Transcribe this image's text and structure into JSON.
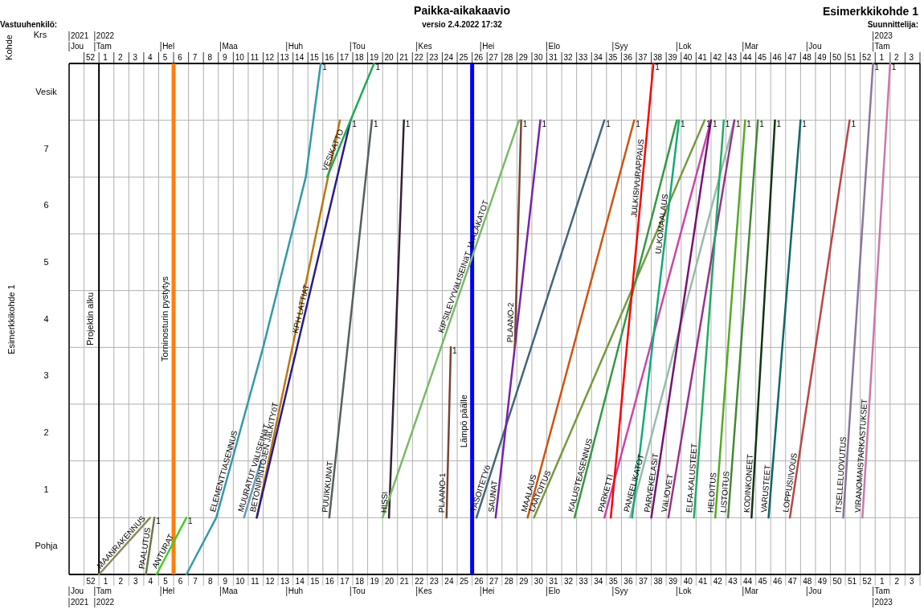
{
  "chart_data": {
    "type": "line",
    "title": "Paikka-aikakaavio",
    "subtitle": "versio 2.4.2022 17:32",
    "ylabel": "Esimerkkikohde 1",
    "legend": false,
    "grid": true,
    "marker": "none",
    "line_style": "solid",
    "xlim": [
      "2021-12-20",
      "2023-01-23"
    ],
    "x2lim": [
      "2021-12-20",
      "2023-01-23"
    ],
    "ylim": [
      0,
      9
    ],
    "xticks": [
      {
        "value": "2021-12-30",
        "label": "52"
      },
      {
        "value": "2022-01-06",
        "label": "1"
      },
      {
        "value": "2022-01-13",
        "label": "2"
      },
      {
        "value": "2022-01-20",
        "label": "3"
      },
      {
        "value": "2022-01-27",
        "label": "4"
      },
      {
        "value": "2022-02-03",
        "label": "5"
      },
      {
        "value": "2022-02-10",
        "label": "6"
      },
      {
        "value": "2022-02-17",
        "label": "7"
      },
      {
        "value": "2022-02-24",
        "label": "8"
      },
      {
        "value": "2022-03-03",
        "label": "9"
      },
      {
        "value": "2022-03-10",
        "label": "10"
      },
      {
        "value": "2022-03-17",
        "label": "11"
      },
      {
        "value": "2022-03-24",
        "label": "12"
      },
      {
        "value": "2022-03-31",
        "label": "13"
      },
      {
        "value": "2022-04-07",
        "label": "14"
      },
      {
        "value": "2022-04-14",
        "label": "15"
      },
      {
        "value": "2022-04-21",
        "label": "16"
      },
      {
        "value": "2022-04-28",
        "label": "17"
      },
      {
        "value": "2022-05-05",
        "label": "18"
      },
      {
        "value": "2022-05-12",
        "label": "19"
      },
      {
        "value": "2022-05-19",
        "label": "20"
      },
      {
        "value": "2022-05-26",
        "label": "21"
      },
      {
        "value": "2022-06-02",
        "label": "22"
      },
      {
        "value": "2022-06-09",
        "label": "23"
      },
      {
        "value": "2022-06-16",
        "label": "24"
      },
      {
        "value": "2022-06-23",
        "label": "25"
      },
      {
        "value": "2022-06-30",
        "label": "26"
      },
      {
        "value": "2022-07-07",
        "label": "27"
      },
      {
        "value": "2022-07-14",
        "label": "28"
      },
      {
        "value": "2022-07-21",
        "label": "29"
      },
      {
        "value": "2022-07-28",
        "label": "30"
      },
      {
        "value": "2022-08-04",
        "label": "31"
      },
      {
        "value": "2022-08-11",
        "label": "32"
      },
      {
        "value": "2022-08-18",
        "label": "33"
      },
      {
        "value": "2022-08-25",
        "label": "34"
      },
      {
        "value": "2022-09-01",
        "label": "35"
      },
      {
        "value": "2022-09-08",
        "label": "36"
      },
      {
        "value": "2022-09-15",
        "label": "37"
      },
      {
        "value": "2022-09-22",
        "label": "38"
      },
      {
        "value": "2022-09-29",
        "label": "39"
      },
      {
        "value": "2022-10-06",
        "label": "40"
      },
      {
        "value": "2022-10-13",
        "label": "41"
      },
      {
        "value": "2022-10-20",
        "label": "42"
      },
      {
        "value": "2022-10-27",
        "label": "43"
      },
      {
        "value": "2022-11-03",
        "label": "44"
      },
      {
        "value": "2022-11-10",
        "label": "45"
      },
      {
        "value": "2022-11-17",
        "label": "46"
      },
      {
        "value": "2022-11-24",
        "label": "47"
      },
      {
        "value": "2022-12-01",
        "label": "48"
      },
      {
        "value": "2022-12-08",
        "label": "49"
      },
      {
        "value": "2022-12-15",
        "label": "50"
      },
      {
        "value": "2022-12-22",
        "label": "51"
      },
      {
        "value": "2022-12-29",
        "label": "52"
      },
      {
        "value": "2023-01-05",
        "label": "1"
      },
      {
        "value": "2023-01-12",
        "label": "2"
      },
      {
        "value": "2023-01-19",
        "label": "3"
      },
      {
        "value": "2021-12-27",
        "label": null
      },
      {
        "value": "2022-01-03",
        "label": null
      },
      {
        "value": "2022-01-10",
        "label": null
      },
      {
        "value": "2022-01-17",
        "label": null
      },
      {
        "value": "2022-01-24",
        "label": null
      },
      {
        "value": "2022-01-31",
        "label": null
      },
      {
        "value": "2022-02-07",
        "label": null
      },
      {
        "value": "2022-02-14",
        "label": null
      },
      {
        "value": "2022-02-21",
        "label": null
      },
      {
        "value": "2022-02-28",
        "label": null
      },
      {
        "value": "2022-03-07",
        "label": null
      },
      {
        "value": "2022-03-14",
        "label": null
      },
      {
        "value": "2022-03-21",
        "label": null
      },
      {
        "value": "2022-03-28",
        "label": null
      },
      {
        "value": "2022-04-04",
        "label": null
      },
      {
        "value": "2022-04-11",
        "label": null
      },
      {
        "value": "2022-04-18",
        "label": null
      },
      {
        "value": "2022-04-25",
        "label": null
      },
      {
        "value": "2022-05-02",
        "label": null
      },
      {
        "value": "2022-05-09",
        "label": null
      },
      {
        "value": "2022-05-16",
        "label": null
      },
      {
        "value": "2022-05-23",
        "label": null
      },
      {
        "value": "2022-05-30",
        "label": null
      },
      {
        "value": "2022-06-06",
        "label": null
      },
      {
        "value": "2022-06-13",
        "label": null
      },
      {
        "value": "2022-06-20",
        "label": null
      },
      {
        "value": "2022-06-27",
        "label": null
      },
      {
        "value": "2022-07-04",
        "label": null
      },
      {
        "value": "2022-07-11",
        "label": null
      },
      {
        "value": "2022-07-18",
        "label": null
      },
      {
        "value": "2022-07-25",
        "label": null
      },
      {
        "value": "2022-08-01",
        "label": null
      },
      {
        "value": "2022-08-08",
        "label": null
      },
      {
        "value": "2022-08-15",
        "label": null
      },
      {
        "value": "2022-08-22",
        "label": null
      },
      {
        "value": "2022-08-29",
        "label": null
      },
      {
        "value": "2022-09-05",
        "label": null
      },
      {
        "value": "2022-09-12",
        "label": null
      },
      {
        "value": "2022-09-19",
        "label": null
      },
      {
        "value": "2022-09-26",
        "label": null
      },
      {
        "value": "2022-10-03",
        "label": null
      },
      {
        "value": "2022-10-10",
        "label": null
      },
      {
        "value": "2022-10-17",
        "label": null
      },
      {
        "value": "2022-10-24",
        "label": null
      },
      {
        "value": "2022-10-31",
        "label": null
      },
      {
        "value": "2022-11-07",
        "label": null
      },
      {
        "value": "2022-11-14",
        "label": null
      },
      {
        "value": "2022-11-21",
        "label": null
      },
      {
        "value": "2022-11-28",
        "label": null
      },
      {
        "value": "2022-12-05",
        "label": null
      },
      {
        "value": "2022-12-12",
        "label": null
      },
      {
        "value": "2022-12-19",
        "label": null
      },
      {
        "value": "2022-12-26",
        "label": null
      },
      {
        "value": "2023-01-02",
        "label": null
      },
      {
        "value": "2023-01-09",
        "label": null
      },
      {
        "value": "2023-01-16",
        "label": null
      },
      {
        "value": "2023-01-23",
        "label": null
      }
    ],
    "x2ticks": [
      {
        "value": "2021-12-30",
        "label": "52"
      },
      {
        "value": "2022-01-06",
        "label": "1"
      },
      {
        "value": "2022-01-13",
        "label": "2"
      },
      {
        "value": "2022-01-20",
        "label": "3"
      },
      {
        "value": "2022-01-27",
        "label": "4"
      },
      {
        "value": "2022-02-03",
        "label": "5"
      },
      {
        "value": "2022-02-10",
        "label": "6"
      },
      {
        "value": "2022-02-17",
        "label": "7"
      },
      {
        "value": "2022-02-24",
        "label": "8"
      },
      {
        "value": "2022-03-03",
        "label": "9"
      },
      {
        "value": "2022-03-10",
        "label": "10"
      },
      {
        "value": "2022-03-17",
        "label": "11"
      },
      {
        "value": "2022-03-24",
        "label": "12"
      },
      {
        "value": "2022-03-31",
        "label": "13"
      },
      {
        "value": "2022-04-07",
        "label": "14"
      },
      {
        "value": "2022-04-14",
        "label": "15"
      },
      {
        "value": "2022-04-21",
        "label": "16"
      },
      {
        "value": "2022-04-28",
        "label": "17"
      },
      {
        "value": "2022-05-05",
        "label": "18"
      },
      {
        "value": "2022-05-12",
        "label": "19"
      },
      {
        "value": "2022-05-19",
        "label": "20"
      },
      {
        "value": "2022-05-26",
        "label": "21"
      },
      {
        "value": "2022-06-02",
        "label": "22"
      },
      {
        "value": "2022-06-09",
        "label": "23"
      },
      {
        "value": "2022-06-16",
        "label": "24"
      },
      {
        "value": "2022-06-23",
        "label": "25"
      },
      {
        "value": "2022-06-30",
        "label": "26"
      },
      {
        "value": "2022-07-07",
        "label": "27"
      },
      {
        "value": "2022-07-14",
        "label": "28"
      },
      {
        "value": "2022-07-21",
        "label": "29"
      },
      {
        "value": "2022-07-28",
        "label": "30"
      },
      {
        "value": "2022-08-04",
        "label": "31"
      },
      {
        "value": "2022-08-11",
        "label": "32"
      },
      {
        "value": "2022-08-18",
        "label": "33"
      },
      {
        "value": "2022-08-25",
        "label": "34"
      },
      {
        "value": "2022-09-01",
        "label": "35"
      },
      {
        "value": "2022-09-08",
        "label": "36"
      },
      {
        "value": "2022-09-15",
        "label": "37"
      },
      {
        "value": "2022-09-22",
        "label": "38"
      },
      {
        "value": "2022-09-29",
        "label": "39"
      },
      {
        "value": "2022-10-06",
        "label": "40"
      },
      {
        "value": "2022-10-13",
        "label": "41"
      },
      {
        "value": "2022-10-20",
        "label": "42"
      },
      {
        "value": "2022-10-27",
        "label": "43"
      },
      {
        "value": "2022-11-03",
        "label": "44"
      },
      {
        "value": "2022-11-10",
        "label": "45"
      },
      {
        "value": "2022-11-17",
        "label": "46"
      },
      {
        "value": "2022-11-24",
        "label": "47"
      },
      {
        "value": "2022-12-01",
        "label": "48"
      },
      {
        "value": "2022-12-08",
        "label": "49"
      },
      {
        "value": "2022-12-15",
        "label": "50"
      },
      {
        "value": "2022-12-22",
        "label": "51"
      },
      {
        "value": "2022-12-29",
        "label": "52"
      },
      {
        "value": "2023-01-05",
        "label": "1"
      },
      {
        "value": "2023-01-12",
        "label": "2"
      },
      {
        "value": "2023-01-19",
        "label": "3"
      },
      {
        "value": "2021-12-27",
        "label": null
      },
      {
        "value": "2022-01-03",
        "label": null
      },
      {
        "value": "2022-01-10",
        "label": null
      },
      {
        "value": "2022-01-17",
        "label": null
      },
      {
        "value": "2022-01-24",
        "label": null
      },
      {
        "value": "2022-01-31",
        "label": null
      },
      {
        "value": "2022-02-07",
        "label": null
      },
      {
        "value": "2022-02-14",
        "label": null
      },
      {
        "value": "2022-02-21",
        "label": null
      },
      {
        "value": "2022-02-28",
        "label": null
      },
      {
        "value": "2022-03-07",
        "label": null
      },
      {
        "value": "2022-03-14",
        "label": null
      },
      {
        "value": "2022-03-21",
        "label": null
      },
      {
        "value": "2022-03-28",
        "label": null
      },
      {
        "value": "2022-04-04",
        "label": null
      },
      {
        "value": "2022-04-11",
        "label": null
      },
      {
        "value": "2022-04-18",
        "label": null
      },
      {
        "value": "2022-04-25",
        "label": null
      },
      {
        "value": "2022-05-02",
        "label": null
      },
      {
        "value": "2022-05-09",
        "label": null
      },
      {
        "value": "2022-05-16",
        "label": null
      },
      {
        "value": "2022-05-23",
        "label": null
      },
      {
        "value": "2022-05-30",
        "label": null
      },
      {
        "value": "2022-06-06",
        "label": null
      },
      {
        "value": "2022-06-13",
        "label": null
      },
      {
        "value": "2022-06-20",
        "label": null
      },
      {
        "value": "2022-06-27",
        "label": null
      },
      {
        "value": "2022-07-04",
        "label": null
      },
      {
        "value": "2022-07-11",
        "label": null
      },
      {
        "value": "2022-07-18",
        "label": null
      },
      {
        "value": "2022-07-25",
        "label": null
      },
      {
        "value": "2022-08-01",
        "label": null
      },
      {
        "value": "2022-08-08",
        "label": null
      },
      {
        "value": "2022-08-15",
        "label": null
      },
      {
        "value": "2022-08-22",
        "label": null
      },
      {
        "value": "2022-08-29",
        "label": null
      },
      {
        "value": "2022-09-05",
        "label": null
      },
      {
        "value": "2022-09-12",
        "label": null
      },
      {
        "value": "2022-09-19",
        "label": null
      },
      {
        "value": "2022-09-26",
        "label": null
      },
      {
        "value": "2022-10-03",
        "label": null
      },
      {
        "value": "2022-10-10",
        "label": null
      },
      {
        "value": "2022-10-17",
        "label": null
      },
      {
        "value": "2022-10-24",
        "label": null
      },
      {
        "value": "2022-10-31",
        "label": null
      },
      {
        "value": "2022-11-07",
        "label": null
      },
      {
        "value": "2022-11-14",
        "label": null
      },
      {
        "value": "2022-11-21",
        "label": null
      },
      {
        "value": "2022-11-28",
        "label": null
      },
      {
        "value": "2022-12-05",
        "label": null
      },
      {
        "value": "2022-12-12",
        "label": null
      },
      {
        "value": "2022-12-19",
        "label": null
      },
      {
        "value": "2022-12-26",
        "label": null
      },
      {
        "value": "2023-01-02",
        "label": null
      },
      {
        "value": "2023-01-09",
        "label": null
      },
      {
        "value": "2023-01-16",
        "label": null
      },
      {
        "value": "2023-01-23",
        "label": null
      }
    ],
    "yticks": [
      {
        "value": 0.5,
        "label": "Pohja"
      },
      {
        "value": 1.5,
        "label": "1"
      },
      {
        "value": 2.5,
        "label": "2"
      },
      {
        "value": 3.5,
        "label": "3"
      },
      {
        "value": 4.5,
        "label": "4"
      },
      {
        "value": 5.5,
        "label": "5"
      },
      {
        "value": 6.5,
        "label": "6"
      },
      {
        "value": 7.5,
        "label": "7"
      },
      {
        "value": 8.5,
        "label": "Vesik"
      },
      {
        "value": 0,
        "label": null
      },
      {
        "value": 1,
        "label": null
      },
      {
        "value": 2,
        "label": null
      },
      {
        "value": 3,
        "label": null
      },
      {
        "value": 4,
        "label": null
      },
      {
        "value": 5,
        "label": null
      },
      {
        "value": 6,
        "label": null
      },
      {
        "value": 7,
        "label": null
      },
      {
        "value": 8,
        "label": null
      },
      {
        "value": 9,
        "label": null
      }
    ],
    "ref_lines": [
      {
        "axis": "x",
        "value": "2022-01-03",
        "label": "Projektin alku",
        "color": "#000000"
      },
      {
        "axis": "x",
        "value": "2022-02-07",
        "label": "Torninosturin pystytys",
        "color": "#ff7f0e"
      },
      {
        "axis": "x",
        "value": "2022-06-27",
        "label": "Lämpö päälle",
        "color": "#0000ff"
      }
    ],
    "series": [
      {
        "name": "MAANRAKENNUS",
        "color": "#8b8b5c",
        "x": [
          "2022-01-03",
          "2022-01-27"
        ],
        "values": [
          0,
          1
        ]
      },
      {
        "name": "PAALUTUS",
        "color": "#6b7a45",
        "x": [
          "2022-01-25",
          "2022-01-29"
        ],
        "values": [
          0,
          1
        ]
      },
      {
        "name": "ANTURAT",
        "color": "#44cc22",
        "x": [
          "2022-01-30",
          "2022-02-13"
        ],
        "values": [
          0,
          1
        ]
      },
      {
        "name": "ELEMENTTIASENNUS",
        "color": "#3399aa",
        "x": [
          "2022-02-13",
          "2022-02-27",
          "2022-03-21",
          "2022-04-10",
          "2022-04-17"
        ],
        "values": [
          0,
          1,
          4,
          7,
          9
        ]
      },
      {
        "name": "MUURATUT VäLISEINäT",
        "color": "#6699bb",
        "x": [
          "2022-03-12",
          "2022-03-20"
        ],
        "values": [
          1,
          2
        ]
      },
      {
        "name": "BETONIPINTOJEN JäLKITYöT",
        "color": "#bb7711",
        "x": [
          "2022-03-18",
          "2022-04-26"
        ],
        "values": [
          1,
          8
        ]
      },
      {
        "name": "KPH LATTIAT",
        "color": "#2a1a88",
        "x": [
          "2022-03-18",
          "2022-05-01"
        ],
        "values": [
          1,
          8
        ]
      },
      {
        "name": "VESIKATTO",
        "color": "#22aa55",
        "x": [
          "2022-04-20",
          "2022-05-12"
        ],
        "values": [
          7,
          9
        ]
      },
      {
        "name": "PUUIKKUNAT",
        "color": "#555f60",
        "x": [
          "2022-04-21",
          "2022-05-11"
        ],
        "values": [
          1,
          8
        ]
      },
      {
        "name": "HISSI",
        "color": "#332233",
        "x": [
          "2022-05-19",
          "2022-05-26"
        ],
        "values": [
          1,
          8
        ]
      },
      {
        "name": "KIPSILEVYVäLISEINäT JA ALAKATOT",
        "color": "#77bb66",
        "x": [
          "2022-05-16",
          "2022-07-19"
        ],
        "values": [
          1,
          8
        ]
      },
      {
        "name": "PLAANO-1",
        "color": "#774433",
        "x": [
          "2022-06-15",
          "2022-06-17"
        ],
        "values": [
          1,
          4
        ]
      },
      {
        "name": "TASOITETYö",
        "color": "#446677",
        "x": [
          "2022-06-29",
          "2022-08-28"
        ],
        "values": [
          1,
          8
        ]
      },
      {
        "name": "SAUNAT",
        "color": "#7722aa",
        "x": [
          "2022-07-08",
          "2022-07-29"
        ],
        "values": [
          1,
          8
        ]
      },
      {
        "name": "PLAANO-2",
        "color": "#774433",
        "x": [
          "2022-07-17",
          "2022-07-20"
        ],
        "values": [
          4,
          8
        ]
      },
      {
        "name": "MAALAUS",
        "color": "#cc5511",
        "x": [
          "2022-07-23",
          "2022-09-11"
        ],
        "values": [
          1,
          8
        ]
      },
      {
        "name": "LAATOITUS",
        "color": "#77993f",
        "x": [
          "2022-07-26",
          "2022-10-14"
        ],
        "values": [
          1,
          8
        ]
      },
      {
        "name": "KALUSTEASENNUS",
        "color": "#339944",
        "x": [
          "2022-08-14",
          "2022-10-01"
        ],
        "values": [
          1,
          8
        ]
      },
      {
        "name": "PARKETTI",
        "color": "#cc44aa",
        "x": [
          "2022-08-28",
          "2022-10-17"
        ],
        "values": [
          1,
          8
        ]
      },
      {
        "name": "JULKISIVURAPPAUS",
        "color": "#ff0000",
        "x": [
          "2022-08-31",
          "2022-09-20"
        ],
        "values": [
          1,
          9
        ]
      },
      {
        "name": "PANEELIKATOT",
        "color": "#99bbaa",
        "x": [
          "2022-09-09",
          "2022-10-28"
        ],
        "values": [
          1,
          8
        ]
      },
      {
        "name": "ULKOMAALAUS",
        "color": "#11aa77",
        "x": [
          "2022-09-10",
          "2022-10-02"
        ],
        "values": [
          1,
          8
        ]
      },
      {
        "name": "PARVEKELASIT",
        "color": "#771177",
        "x": [
          "2022-09-19",
          "2022-10-17"
        ],
        "values": [
          1,
          8
        ]
      },
      {
        "name": "VäLIOVET",
        "color": "#993388",
        "x": [
          "2022-09-27",
          "2022-10-28"
        ],
        "values": [
          1,
          8
        ]
      },
      {
        "name": "ELFA-KALUSTEET",
        "color": "#22aa66",
        "x": [
          "2022-10-09",
          "2022-10-23"
        ],
        "values": [
          1,
          8
        ]
      },
      {
        "name": "HELOITUS",
        "color": "#55aa22",
        "x": [
          "2022-10-19",
          "2022-11-02"
        ],
        "values": [
          1,
          8
        ]
      },
      {
        "name": "LISTOITUS",
        "color": "#448833",
        "x": [
          "2022-10-25",
          "2022-11-08"
        ],
        "values": [
          1,
          8
        ]
      },
      {
        "name": "KODINKONEET",
        "color": "#113311",
        "x": [
          "2022-11-05",
          "2022-11-16"
        ],
        "values": [
          1,
          8
        ]
      },
      {
        "name": "VARUSTEET",
        "color": "#116666",
        "x": [
          "2022-11-13",
          "2022-11-28"
        ],
        "values": [
          1,
          8
        ]
      },
      {
        "name": "LOPPUSIIVOUS",
        "color": "#bb4444",
        "x": [
          "2022-11-23",
          "2022-12-21"
        ],
        "values": [
          1,
          8
        ]
      },
      {
        "name": "ITSELLELUOVUTUS",
        "color": "#887799",
        "x": [
          "2022-12-18",
          "2023-01-01"
        ],
        "values": [
          1,
          9
        ]
      },
      {
        "name": "VIRANOMAISTARKASTUKSET",
        "color": "#cc77aa",
        "x": [
          "2022-12-27",
          "2023-01-09"
        ],
        "values": [
          1,
          9
        ]
      }
    ],
    "annotations": [
      "Vastuuhenkilö:",
      "Esimerkkikohde 1",
      "Suunnittelija:",
      "Kohde",
      "Krs",
      "Jou",
      "Tam",
      "Hel",
      "Maa",
      "Huh",
      "Tou",
      "Kes",
      "Hei",
      "Elo",
      "Syy",
      "Lok",
      "Mar",
      "Jou",
      "Tam",
      "2021",
      "2022",
      "2023",
      {
        "text": "1",
        "x": "2022-01-29",
        "y": 1
      },
      {
        "text": "1",
        "x": "2022-02-13",
        "y": 1
      },
      {
        "text": "1",
        "x": "2022-04-17",
        "y": 9
      },
      {
        "text": "1",
        "x": "2022-05-12",
        "y": 9
      },
      {
        "text": "1",
        "x": "2022-05-01",
        "y": 8
      },
      {
        "text": "1",
        "x": "2022-05-11",
        "y": 8
      },
      {
        "text": "1",
        "x": "2022-05-26",
        "y": 8
      },
      {
        "text": "1",
        "x": "2022-06-17",
        "y": 4
      },
      {
        "text": "1",
        "x": "2022-07-20",
        "y": 8
      },
      {
        "text": "1",
        "x": "2022-07-29",
        "y": 8
      },
      {
        "text": "1",
        "x": "2022-08-28",
        "y": 8
      },
      {
        "text": "1",
        "x": "2022-09-11",
        "y": 8
      },
      {
        "text": "1",
        "x": "2022-09-20",
        "y": 9
      },
      {
        "text": "1",
        "x": "2022-10-02",
        "y": 8
      },
      {
        "text": "1",
        "x": "2022-10-14",
        "y": 8
      },
      {
        "text": "1",
        "x": "2022-10-17",
        "y": 8
      },
      {
        "text": "1",
        "x": "2022-10-23",
        "y": 8
      },
      {
        "text": "1",
        "x": "2022-10-28",
        "y": 8
      },
      {
        "text": "1",
        "x": "2022-11-02",
        "y": 8
      },
      {
        "text": "1",
        "x": "2022-11-08",
        "y": 8
      },
      {
        "text": "1",
        "x": "2022-11-16",
        "y": 8
      },
      {
        "text": "1",
        "x": "2022-11-28",
        "y": 8
      },
      {
        "text": "1",
        "x": "2022-12-21",
        "y": 8
      },
      {
        "text": "1",
        "x": "2023-01-01",
        "y": 9
      },
      {
        "text": "1",
        "x": "2023-01-09",
        "y": 9
      }
    ]
  }
}
